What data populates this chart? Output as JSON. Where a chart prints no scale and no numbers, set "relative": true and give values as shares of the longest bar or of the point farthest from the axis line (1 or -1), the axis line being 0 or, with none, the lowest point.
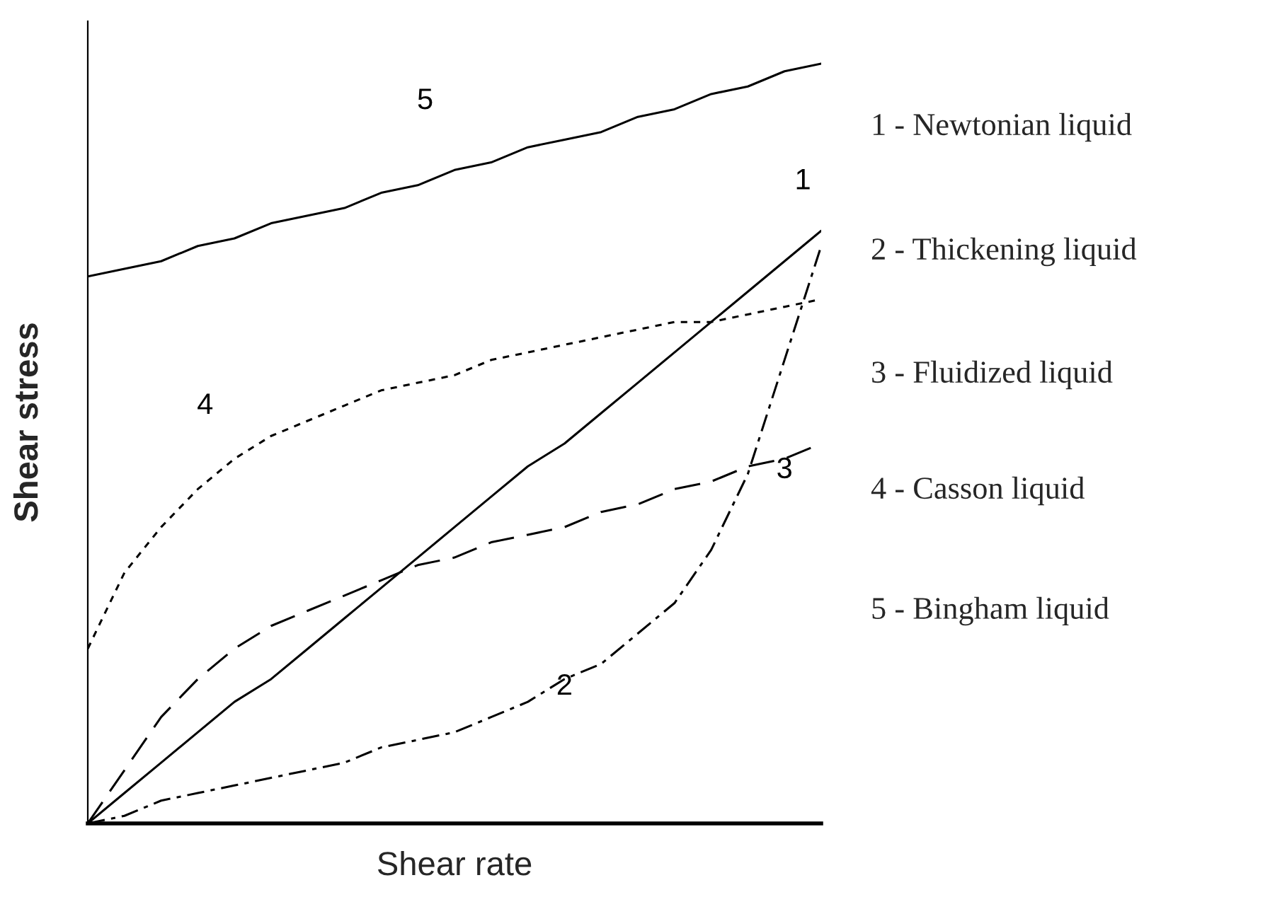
{
  "chart_data": {
    "type": "line",
    "relative": true,
    "xlabel": "Shear rate",
    "ylabel": "Shear stress",
    "categories": [
      null,
      null,
      null,
      null,
      null,
      null,
      null,
      null,
      null,
      null,
      null,
      null,
      null,
      null,
      null,
      null,
      null,
      null,
      null,
      null,
      null
    ],
    "series": [
      {
        "name": "1",
        "color": "#000000",
        "line_style": "solid",
        "values": [
          0,
          0.04,
          0.08,
          0.12,
          0.16,
          0.19,
          0.23,
          0.27,
          0.31,
          0.35,
          0.39,
          0.43,
          0.47,
          0.5,
          0.54,
          0.58,
          0.62,
          0.66,
          0.7,
          0.74,
          0.78
        ]
      },
      {
        "name": "2",
        "color": "#000000",
        "line_style": "dashdot",
        "values": [
          0,
          0.01,
          0.03,
          0.04,
          0.05,
          0.06,
          0.07,
          0.08,
          0.1,
          0.11,
          0.12,
          0.14,
          0.16,
          0.19,
          0.21,
          0.25,
          0.29,
          0.36,
          0.46,
          0.61,
          0.76
        ]
      },
      {
        "name": "3",
        "color": "#000000",
        "line_style": "dashed",
        "values": [
          0,
          0.07,
          0.14,
          0.19,
          0.23,
          0.26,
          0.28,
          0.3,
          0.32,
          0.34,
          0.35,
          0.37,
          0.38,
          0.39,
          0.41,
          0.42,
          0.44,
          0.45,
          0.47,
          0.48,
          0.5
        ]
      },
      {
        "name": "4",
        "color": "#000000",
        "line_style": "dotted",
        "values": [
          0.23,
          0.33,
          0.39,
          0.44,
          0.48,
          0.51,
          0.53,
          0.55,
          0.57,
          0.58,
          0.59,
          0.61,
          0.62,
          0.63,
          0.64,
          0.65,
          0.66,
          0.66,
          0.67,
          0.68,
          0.69
        ]
      },
      {
        "name": "5",
        "color": "#000000",
        "line_style": "solid",
        "values": [
          0.72,
          0.73,
          0.74,
          0.76,
          0.77,
          0.79,
          0.8,
          0.81,
          0.83,
          0.84,
          0.86,
          0.87,
          0.89,
          0.9,
          0.91,
          0.93,
          0.94,
          0.96,
          0.97,
          0.99,
          1.0
        ]
      }
    ],
    "annotations": [
      "1 - Newtonian liquid",
      "2 - Thickening liquid",
      "3 - Fluidized liquid",
      "4 - Casson liquid",
      "5 - Bingham liquid"
    ],
    "legend": false
  }
}
